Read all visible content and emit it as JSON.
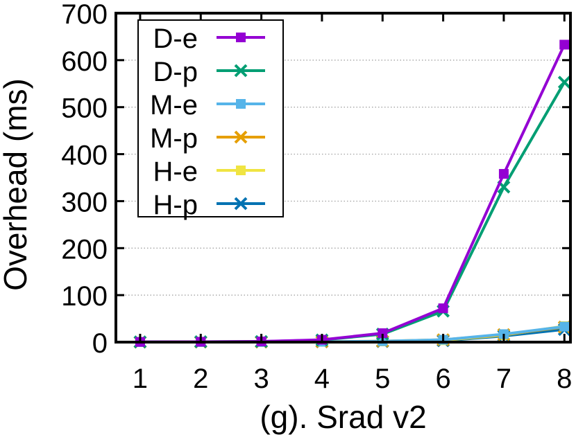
{
  "chart_data": {
    "type": "line",
    "title": "",
    "xlabel": "(g). Srad v2",
    "ylabel": "Overhead (ms)",
    "x": [
      1,
      2,
      3,
      4,
      5,
      6,
      7,
      8
    ],
    "xticks": [
      "1",
      "2",
      "3",
      "4",
      "5",
      "6",
      "7",
      "8"
    ],
    "xlim": [
      0.6,
      8.1
    ],
    "ylim": [
      0,
      700
    ],
    "yticks": [
      "0",
      "100",
      "200",
      "300",
      "400",
      "500",
      "600",
      "700"
    ],
    "grid": "horizontal dotted",
    "legend_position": "top-left",
    "series": [
      {
        "name": "D-e",
        "marker": "square",
        "color": "#9400d3",
        "values": [
          0.5,
          0.8,
          1.5,
          5,
          19,
          72,
          358,
          633
        ]
      },
      {
        "name": "D-p",
        "marker": "cross",
        "color": "#009e73",
        "values": [
          0.5,
          0.8,
          1.3,
          4.5,
          17,
          66,
          330,
          553
        ]
      },
      {
        "name": "M-e",
        "marker": "square",
        "color": "#56b4e9",
        "values": [
          0.1,
          0.2,
          0.3,
          0.8,
          2,
          5,
          17,
          33
        ]
      },
      {
        "name": "M-p",
        "marker": "cross",
        "color": "#e69f00",
        "values": [
          0.1,
          0.2,
          0.3,
          0.8,
          2,
          5,
          16,
          32
        ]
      },
      {
        "name": "H-e",
        "marker": "square",
        "color": "#f0e442",
        "values": [
          0.1,
          0.2,
          0.3,
          0.7,
          1.5,
          4,
          15,
          34
        ]
      },
      {
        "name": "H-p",
        "marker": "cross",
        "color": "#0072b2",
        "values": [
          0.1,
          0.2,
          0.3,
          0.6,
          1.2,
          3,
          13,
          27
        ]
      }
    ]
  }
}
